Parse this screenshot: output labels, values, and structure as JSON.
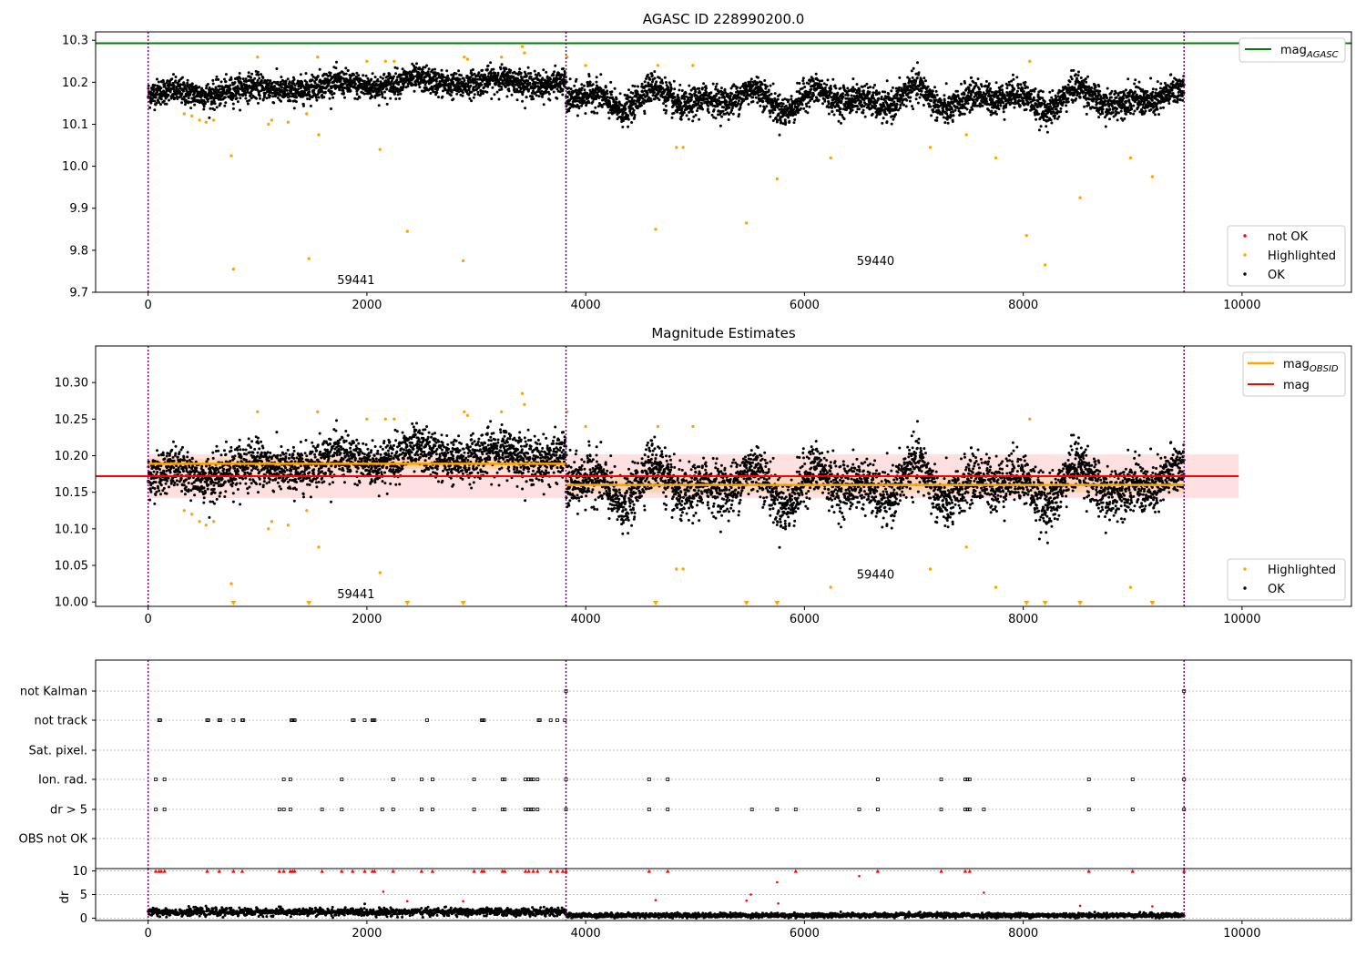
{
  "chart_data": [
    {
      "type": "scatter",
      "title": "AGASC ID 228990200.0",
      "xlim": [
        -480,
        11000
      ],
      "ylim": [
        9.7,
        10.32
      ],
      "xticks": [
        0,
        2000,
        4000,
        6000,
        8000,
        10000
      ],
      "xtick_labels": [
        "0",
        "2000",
        "4000",
        "6000",
        "8000",
        "10000"
      ],
      "yticks": [
        9.7,
        9.8,
        9.9,
        10.0,
        10.1,
        10.2,
        10.3
      ],
      "ytick_labels": [
        "9.7",
        "9.8",
        "9.9",
        "10.0",
        "10.1",
        "10.2",
        "10.3"
      ],
      "vlines": [
        0,
        3820,
        9470
      ],
      "annotations": [
        {
          "text": "59441",
          "x": 1900,
          "y": 9.72
        },
        {
          "text": "59440",
          "x": 6650,
          "y": 9.765
        }
      ],
      "hline": {
        "name": "mag",
        "subscript": "AGASC",
        "y": 10.293,
        "color": "#008000"
      },
      "series": [
        {
          "name": "not OK",
          "color": "#ff0000",
          "values": []
        },
        {
          "name": "Highlighted",
          "color": "#ffa500",
          "points": [
            [
              330,
              10.125
            ],
            [
              400,
              10.12
            ],
            [
              470,
              10.11
            ],
            [
              530,
              10.105
            ],
            [
              600,
              10.11
            ],
            [
              760,
              10.025
            ],
            [
              780,
              9.755
            ],
            [
              1000,
              10.26
            ],
            [
              1100,
              10.1
            ],
            [
              1130,
              10.11
            ],
            [
              1280,
              10.105
            ],
            [
              1450,
              10.125
            ],
            [
              1470,
              9.78
            ],
            [
              1550,
              10.26
            ],
            [
              1560,
              10.075
            ],
            [
              2000,
              10.25
            ],
            [
              2120,
              10.04
            ],
            [
              2170,
              10.25
            ],
            [
              2250,
              10.25
            ],
            [
              2370,
              9.845
            ],
            [
              2880,
              9.775
            ],
            [
              2890,
              10.26
            ],
            [
              2920,
              10.255
            ],
            [
              3230,
              10.26
            ],
            [
              3420,
              10.285
            ],
            [
              3440,
              10.27
            ],
            [
              3830,
              10.26
            ],
            [
              4000,
              10.24
            ],
            [
              4640,
              9.85
            ],
            [
              4660,
              10.24
            ],
            [
              4830,
              10.045
            ],
            [
              4890,
              10.045
            ],
            [
              4980,
              10.24
            ],
            [
              5470,
              9.865
            ],
            [
              5750,
              9.97
            ],
            [
              6240,
              10.02
            ],
            [
              7150,
              10.045
            ],
            [
              7480,
              10.075
            ],
            [
              7750,
              10.02
            ],
            [
              8030,
              9.835
            ],
            [
              8060,
              10.25
            ],
            [
              8200,
              9.765
            ],
            [
              8520,
              9.925
            ],
            [
              8980,
              10.02
            ],
            [
              9180,
              9.975
            ]
          ]
        },
        {
          "name": "OK",
          "color": "#000000",
          "segments": [
            [
              0,
              3820,
              10.17,
              10.2,
              0.022
            ],
            [
              3820,
              9470,
              10.16,
              10.16,
              0.025
            ]
          ]
        }
      ],
      "legends": [
        {
          "placement": "upper-right",
          "entries": [
            "mag_AGASC"
          ]
        },
        {
          "placement": "lower-right",
          "entries": [
            "not OK",
            "Highlighted",
            "OK"
          ]
        }
      ]
    },
    {
      "type": "scatter",
      "title": "Magnitude Estimates",
      "xlim": [
        -480,
        11000
      ],
      "ylim": [
        9.994,
        10.35
      ],
      "xticks": [
        0,
        2000,
        4000,
        6000,
        8000,
        10000
      ],
      "xtick_labels": [
        "0",
        "2000",
        "4000",
        "6000",
        "8000",
        "10000"
      ],
      "yticks": [
        10.0,
        10.05,
        10.1,
        10.15,
        10.2,
        10.25,
        10.3
      ],
      "ytick_labels": [
        "10.00",
        "10.05",
        "10.10",
        "10.15",
        "10.20",
        "10.25",
        "10.30"
      ],
      "vlines": [
        0,
        3820,
        9470
      ],
      "annotations": [
        {
          "text": "59441",
          "x": 1900,
          "y": 10.005
        },
        {
          "text": "59440",
          "x": 6650,
          "y": 10.032
        }
      ],
      "mag": {
        "name": "mag",
        "y": 10.172,
        "band": [
          10.142,
          10.202
        ],
        "xrange": [
          0,
          9970
        ],
        "color": "#ff0000"
      },
      "mag_obsid": [
        {
          "name": "mag",
          "subscript": "OBSID",
          "x": [
            0,
            3820
          ],
          "y": 10.189,
          "band": [
            10.182,
            10.196
          ],
          "color": "#ffa500"
        },
        {
          "name": "mag",
          "subscript": "OBSID",
          "x": [
            3820,
            9470
          ],
          "y": 10.16,
          "band": [
            10.15,
            10.17
          ],
          "color": "#ffa500"
        }
      ],
      "below_range_markers_x": [
        780,
        1470,
        2370,
        2880,
        4640,
        5470,
        5750,
        8030,
        8200,
        8520,
        9180
      ],
      "series": [
        {
          "name": "Highlighted",
          "color": "#ffa500"
        },
        {
          "name": "OK",
          "color": "#000000"
        }
      ],
      "legends": [
        {
          "placement": "upper-right",
          "entries": [
            "mag_OBSID",
            "mag"
          ]
        },
        {
          "placement": "lower-right",
          "entries": [
            "Highlighted",
            "OK"
          ]
        }
      ]
    },
    {
      "type": "scatter",
      "title": "",
      "xlim": [
        -480,
        11000
      ],
      "categories": [
        "not Kalman",
        "not track",
        "Sat. pixel.",
        "Ion. rad.",
        "dr > 5",
        "OBS not OK"
      ],
      "vlines": [
        0,
        3820,
        9470
      ],
      "flags": {
        "not Kalman": [
          3820,
          9470
        ],
        "not track": [
          100,
          110,
          540,
          550,
          650,
          660,
          780,
          860,
          870,
          1310,
          1320,
          1330,
          1340,
          1870,
          1880,
          1980,
          2050,
          2060,
          2070,
          2550,
          3050,
          3060,
          3070,
          3570,
          3580,
          3680,
          3740,
          3810
        ],
        "Sat. pixel.": [],
        "Ion. rad.": [
          70,
          150,
          1240,
          1300,
          1770,
          2240,
          2500,
          2600,
          2980,
          3240,
          3260,
          3450,
          3480,
          3500,
          3520,
          3560,
          3820,
          4580,
          4750,
          6670,
          7250,
          7470,
          7490,
          7510,
          8600,
          9000,
          9470
        ],
        "dr > 5": [
          70,
          150,
          1200,
          1240,
          1300,
          1590,
          1770,
          2140,
          2240,
          2500,
          2600,
          2980,
          3240,
          3260,
          3450,
          3480,
          3500,
          3520,
          3560,
          3820,
          4580,
          4750,
          5520,
          5750,
          5920,
          6500,
          6670,
          7250,
          7470,
          7490,
          7510,
          7640,
          8600,
          9000,
          9470
        ],
        "OBS not OK": []
      }
    },
    {
      "type": "scatter",
      "title": "",
      "xlim": [
        -480,
        11000
      ],
      "ylim": [
        -0.5,
        10.5
      ],
      "yticks": [
        0,
        5,
        10
      ],
      "ytick_labels": [
        "0",
        "5",
        "10"
      ],
      "xticks": [
        0,
        2000,
        4000,
        6000,
        8000,
        10000
      ],
      "xtick_labels": [
        "0",
        "2000",
        "4000",
        "6000",
        "8000",
        "10000"
      ],
      "ylabel": "dr",
      "vlines": [
        0,
        3820,
        9470
      ],
      "capped_markers_x": [
        70,
        100,
        120,
        150,
        540,
        650,
        780,
        860,
        1200,
        1240,
        1300,
        1320,
        1340,
        1590,
        1770,
        1870,
        1980,
        2050,
        2070,
        2240,
        2500,
        2600,
        2980,
        3050,
        3070,
        3240,
        3260,
        3450,
        3480,
        3520,
        3560,
        3680,
        3740,
        3790,
        3820,
        4580,
        4750,
        5920,
        6670,
        7250,
        7470,
        7510,
        8600,
        9000,
        9470
      ],
      "outliers": [
        [
          2150,
          5.6
        ],
        [
          2370,
          3.6
        ],
        [
          2880,
          3.6
        ],
        [
          4640,
          3.8
        ],
        [
          5470,
          3.7
        ],
        [
          5510,
          5.0
        ],
        [
          5750,
          7.6
        ],
        [
          5760,
          3.1
        ],
        [
          6500,
          8.9
        ],
        [
          7640,
          5.4
        ],
        [
          8520,
          2.6
        ],
        [
          9180,
          2.5
        ]
      ],
      "series": [
        {
          "name": "dr",
          "color": "#000000",
          "segments": [
            [
              0,
              3820,
              1.3,
              0.5
            ],
            [
              3820,
              9470,
              0.6,
              0.3
            ]
          ]
        },
        {
          "name": "dr > 10",
          "color": "#ff0000"
        }
      ]
    }
  ]
}
